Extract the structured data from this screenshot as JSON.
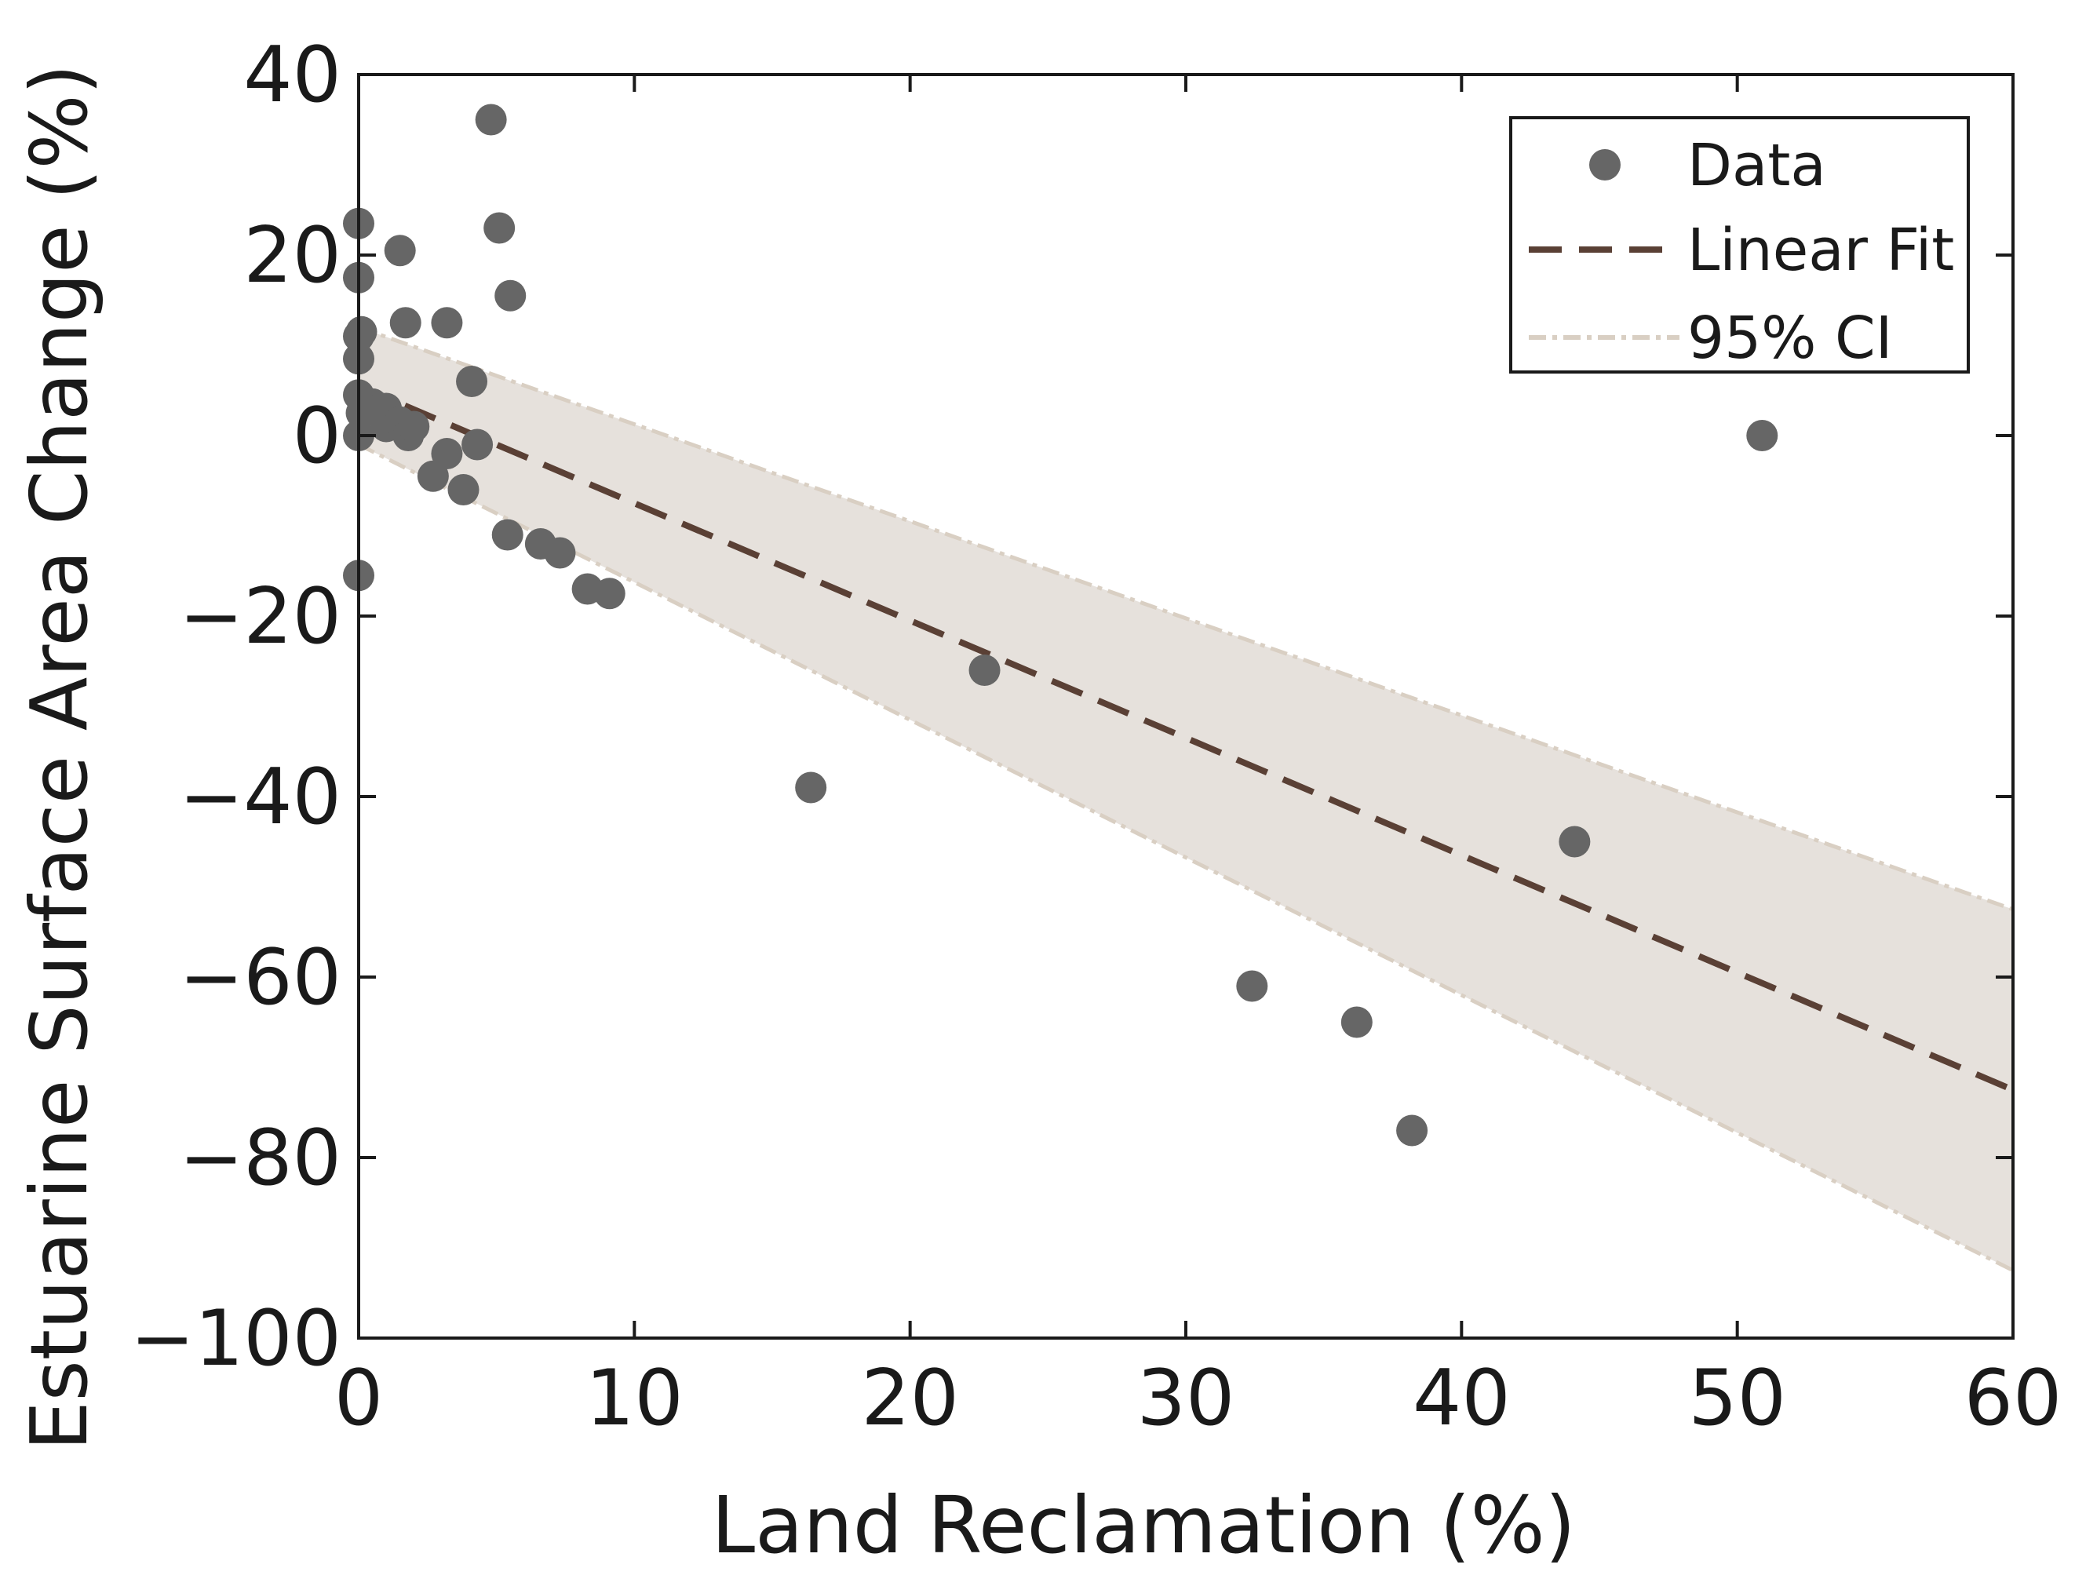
{
  "chart_data": {
    "type": "scatter",
    "xlabel": "Land Reclamation (%)",
    "ylabel": "Estuarine Surface Area Change (%)",
    "xlim": [
      0,
      60
    ],
    "ylim": [
      -100,
      40
    ],
    "xticks": [
      0,
      10,
      20,
      30,
      40,
      50,
      60
    ],
    "yticks": [
      40,
      20,
      0,
      -20,
      -40,
      -60,
      -80,
      -100
    ],
    "xtick_labels": [
      "0",
      "10",
      "20",
      "30",
      "40",
      "50",
      "60"
    ],
    "ytick_labels": [
      "40",
      "20",
      "0",
      "−20",
      "−40",
      "−60",
      "−80",
      "−100"
    ],
    "grid": false,
    "legend_position": "top-right",
    "legend": {
      "data": "Data",
      "fit": "Linear Fit",
      "ci": "95% CI"
    },
    "colors": {
      "points": "#666666",
      "fit_line": "#5a4035",
      "ci_fill": "#e6e1dc",
      "ci_line": "#d9cfc3"
    },
    "series": [
      {
        "name": "Data",
        "points": [
          {
            "x": 0.0,
            "y": 23.5
          },
          {
            "x": 0.0,
            "y": 17.5
          },
          {
            "x": 0.1,
            "y": 11.5
          },
          {
            "x": 0.0,
            "y": 11.0
          },
          {
            "x": 0.0,
            "y": 8.5
          },
          {
            "x": 0.0,
            "y": 4.5
          },
          {
            "x": 0.1,
            "y": 2.5
          },
          {
            "x": 0.0,
            "y": 0.0
          },
          {
            "x": 0.0,
            "y": -15.5
          },
          {
            "x": 0.5,
            "y": 3.5
          },
          {
            "x": 0.8,
            "y": 3.0
          },
          {
            "x": 1.0,
            "y": 3.0
          },
          {
            "x": 1.0,
            "y": 1.0
          },
          {
            "x": 1.5,
            "y": 20.5
          },
          {
            "x": 1.7,
            "y": 12.5
          },
          {
            "x": 1.5,
            "y": 1.5
          },
          {
            "x": 1.8,
            "y": 0.0
          },
          {
            "x": 2.0,
            "y": 1.0
          },
          {
            "x": 2.7,
            "y": -4.5
          },
          {
            "x": 3.2,
            "y": 12.5
          },
          {
            "x": 3.2,
            "y": -2.0
          },
          {
            "x": 3.8,
            "y": -6.0
          },
          {
            "x": 4.1,
            "y": 6.0
          },
          {
            "x": 4.3,
            "y": -1.0
          },
          {
            "x": 4.8,
            "y": 35.0
          },
          {
            "x": 5.1,
            "y": 23.0
          },
          {
            "x": 5.5,
            "y": 15.5
          },
          {
            "x": 5.4,
            "y": -11.0
          },
          {
            "x": 6.6,
            "y": -12.0
          },
          {
            "x": 7.3,
            "y": -13.0
          },
          {
            "x": 8.3,
            "y": -17.0
          },
          {
            "x": 9.1,
            "y": -17.5
          },
          {
            "x": 16.4,
            "y": -39.0
          },
          {
            "x": 22.7,
            "y": -26.0
          },
          {
            "x": 32.4,
            "y": -61.0
          },
          {
            "x": 36.2,
            "y": -65.0
          },
          {
            "x": 38.2,
            "y": -77.0
          },
          {
            "x": 44.1,
            "y": -45.0
          },
          {
            "x": 50.9,
            "y": 0.0
          }
        ]
      },
      {
        "name": "Linear Fit",
        "x": [
          0,
          60
        ],
        "y": [
          5.5,
          -72.5
        ]
      },
      {
        "name": "95% CI",
        "upper": {
          "x": [
            0,
            60
          ],
          "y": [
            12.0,
            -52.5
          ]
        },
        "lower": {
          "x": [
            0,
            60
          ],
          "y": [
            -1.0,
            -92.5
          ]
        }
      }
    ]
  }
}
